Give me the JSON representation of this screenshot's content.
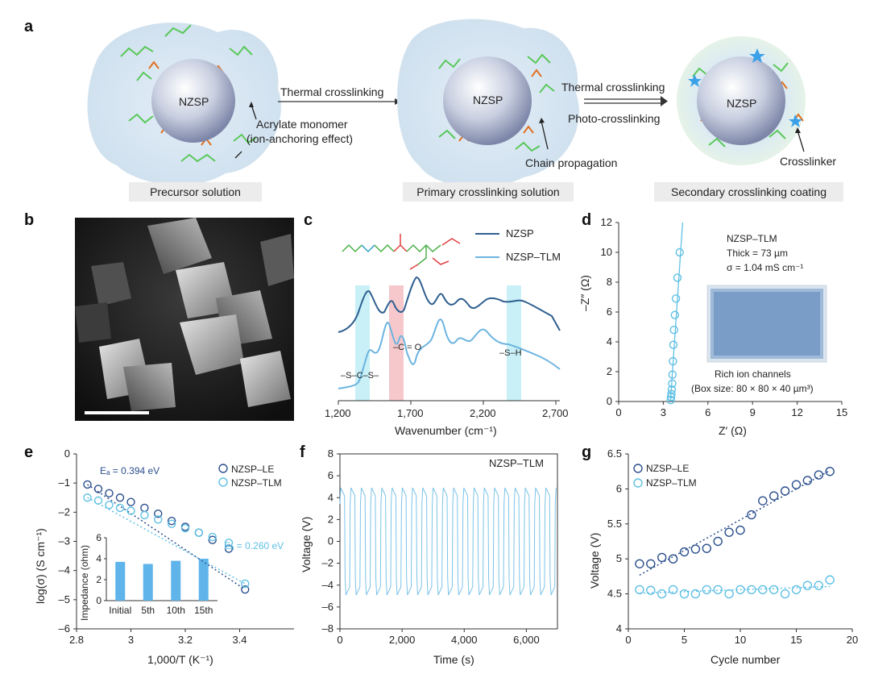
{
  "panel_a": {
    "letter": "a",
    "stage1": {
      "core_label": "NZSP",
      "caption": "Precursor solution",
      "annotation_1": "Acrylate monomer",
      "annotation_2": "(ion-anchoring effect)"
    },
    "arrow1_label": "Thermal crosslinking",
    "stage2": {
      "core_label": "NZSP",
      "caption": "Primary crosslinking solution",
      "annotation": "Chain propagation"
    },
    "arrow2_label_top": "Thermal crosslinking",
    "arrow2_label_bottom": "Photo-crosslinking",
    "stage3": {
      "core_label": "NZSP",
      "caption": "Secondary crosslinking coating",
      "annotation": "Crosslinker"
    }
  },
  "panel_b": {
    "letter": "b"
  },
  "panel_c": {
    "letter": "c",
    "chart_data": {
      "type": "line",
      "xlabel": "Wavenumber (cm⁻¹)",
      "x_ticks": [
        "1,200",
        "1,700",
        "2,200",
        "2,700"
      ],
      "xlim": [
        1200,
        2700
      ],
      "series": [
        {
          "name": "NZSP",
          "color": "#2f5f8f"
        },
        {
          "name": "NZSP–TLM",
          "color": "#6cb4e0"
        }
      ],
      "annotations": [
        "–S–C–S–",
        "–C = O",
        "–S–H"
      ]
    }
  },
  "panel_d": {
    "letter": "d",
    "chart_data": {
      "type": "scatter",
      "xlabel": "Z′ (Ω)",
      "ylabel": "–Z″ (Ω)",
      "xlim": [
        0,
        15
      ],
      "ylim": [
        0,
        12
      ],
      "x_ticks": [
        "0",
        "3",
        "6",
        "9",
        "12",
        "15"
      ],
      "y_ticks": [
        "0",
        "2",
        "4",
        "6",
        "8",
        "10",
        "12"
      ],
      "x": [
        3.5,
        3.52,
        3.55,
        3.57,
        3.6,
        3.62,
        3.65,
        3.68,
        3.72,
        3.78,
        3.85,
        3.95,
        4.1
      ],
      "y": [
        0.1,
        0.3,
        0.5,
        0.8,
        1.2,
        1.8,
        2.7,
        3.8,
        4.8,
        5.8,
        6.9,
        8.3,
        10.0
      ],
      "info": [
        "NZSP–TLM",
        "Thick = 73 µm",
        "σ = 1.04 mS cm⁻¹"
      ],
      "inset_caption_1": "Rich ion channels",
      "inset_caption_2": "(Box size: 80 × 80 × 40 µm³)"
    }
  },
  "panel_e": {
    "letter": "e",
    "chart_data": {
      "type": "scatter",
      "xlabel": "1,000/T (K⁻¹)",
      "ylabel": "log(σ) (S cm⁻¹)",
      "xlim": [
        2.8,
        3.6
      ],
      "ylim": [
        -6,
        0
      ],
      "x_ticks": [
        "2.8",
        "3",
        "3.2",
        "3.4"
      ],
      "y_ticks": [
        "0",
        "–1",
        "–2",
        "–3",
        "–4",
        "–5",
        "–6"
      ],
      "series": [
        {
          "name": "NZSP–LE",
          "color": "#2b4f8c",
          "x": [
            2.84,
            2.88,
            2.92,
            2.96,
            3.0,
            3.05,
            3.1,
            3.15,
            3.2,
            3.25,
            3.3,
            3.36,
            3.42
          ],
          "y": [
            -1.05,
            -1.2,
            -1.35,
            -1.5,
            -1.65,
            -1.85,
            -2.05,
            -2.3,
            -2.5,
            -2.7,
            -2.95,
            -3.25,
            -4.65
          ]
        },
        {
          "name": "NZSP–TLM",
          "color": "#5fc0e4",
          "x": [
            2.84,
            2.88,
            2.92,
            2.96,
            3.0,
            3.05,
            3.1,
            3.15,
            3.2,
            3.25,
            3.3,
            3.36,
            3.42
          ],
          "y": [
            -1.5,
            -1.6,
            -1.75,
            -1.85,
            -1.95,
            -2.1,
            -2.25,
            -2.4,
            -2.55,
            -2.7,
            -2.85,
            -3.05,
            -4.45
          ]
        }
      ],
      "annotations": [
        "Eₐ = 0.394 eV",
        "Eₐ = 0.260 eV"
      ],
      "inset": {
        "type": "bar",
        "ylabel": "Impedance (ohm)",
        "categories": [
          "Initial",
          "5th",
          "10th",
          "15th"
        ],
        "values": [
          3.7,
          3.5,
          3.8,
          4.0
        ],
        "y_ticks": [
          "0",
          "2",
          "4",
          "6"
        ],
        "ylim": [
          0,
          6
        ]
      }
    }
  },
  "panel_f": {
    "letter": "f",
    "chart_data": {
      "type": "line",
      "title": "NZSP–TLM",
      "xlabel": "Time (s)",
      "ylabel": "Voltage (V)",
      "xlim": [
        0,
        7000
      ],
      "ylim": [
        -8,
        8
      ],
      "x_ticks": [
        "0",
        "2,000",
        "4,000",
        "6,000"
      ],
      "y_ticks": [
        "8",
        "6",
        "4",
        "2",
        "0",
        "–2",
        "–4",
        "–6",
        "–8"
      ],
      "period_s": 330,
      "amplitude_v": 4.9
    }
  },
  "panel_g": {
    "letter": "g",
    "chart_data": {
      "type": "scatter",
      "xlabel": "Cycle number",
      "ylabel": "Voltage (V)",
      "xlim": [
        0,
        20
      ],
      "ylim": [
        4,
        6.5
      ],
      "x_ticks": [
        "0",
        "5",
        "10",
        "15",
        "20"
      ],
      "y_ticks": [
        "6.5",
        "6",
        "5.5",
        "5",
        "4.5",
        "4"
      ],
      "series": [
        {
          "name": "NZSP–LE",
          "color": "#2b4f8c",
          "x": [
            1,
            2,
            3,
            4,
            5,
            6,
            7,
            8,
            9,
            10,
            11,
            12,
            13,
            14,
            15,
            16,
            17,
            18
          ],
          "y": [
            4.93,
            4.93,
            5.02,
            5.0,
            5.1,
            5.14,
            5.15,
            5.25,
            5.38,
            5.41,
            5.63,
            5.83,
            5.9,
            5.97,
            6.06,
            6.12,
            6.2,
            6.25
          ]
        },
        {
          "name": "NZSP–TLM",
          "color": "#5fc0e4",
          "x": [
            1,
            2,
            3,
            4,
            5,
            6,
            7,
            8,
            9,
            10,
            11,
            12,
            13,
            14,
            15,
            16,
            17,
            18
          ],
          "y": [
            4.56,
            4.55,
            4.5,
            4.56,
            4.5,
            4.5,
            4.56,
            4.56,
            4.5,
            4.56,
            4.56,
            4.56,
            4.56,
            4.5,
            4.56,
            4.62,
            4.62,
            4.7
          ]
        }
      ]
    }
  }
}
